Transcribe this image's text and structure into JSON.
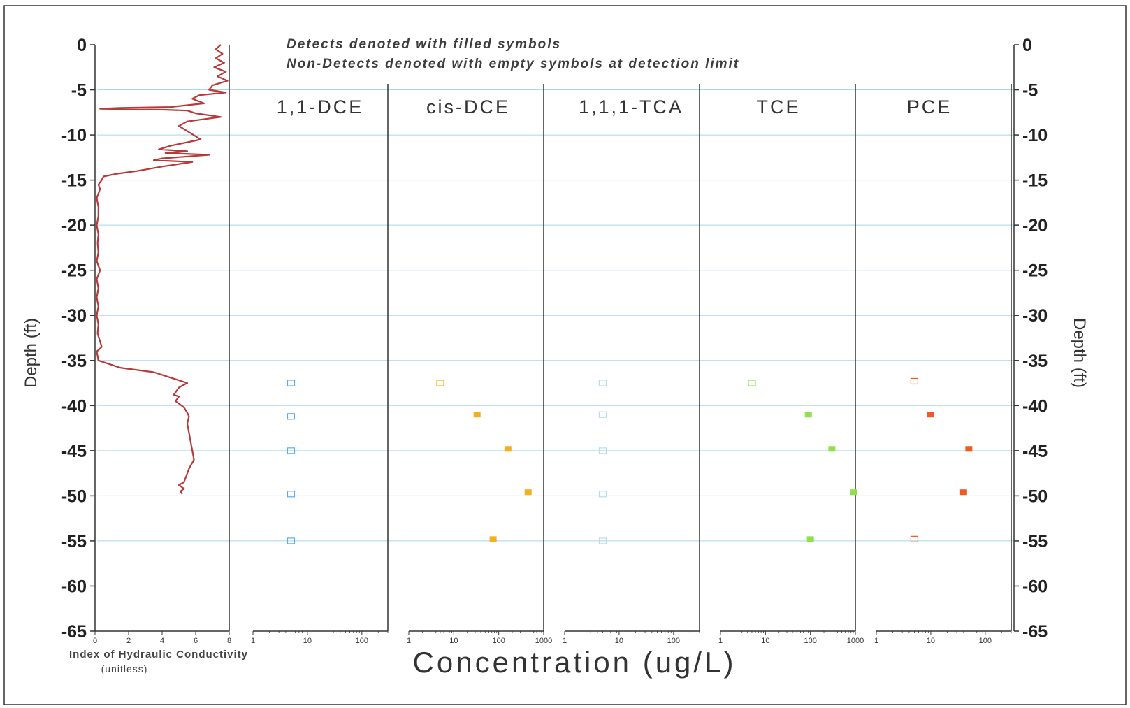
{
  "notes": {
    "line1": "Detects denoted with filled symbols",
    "line2": "Non-Detects denoted with empty symbols at detection limit"
  },
  "x_label": "Concentration (ug/L)",
  "colors": {
    "grid": "#a8d8ea",
    "axis": "#333333",
    "hc_line": "#b8393a",
    "dce11": "#5aaee8",
    "cisdce": "#f2b01e",
    "tca": "#b8dde8",
    "tce": "#8fe04a",
    "pce": "#ee5a24"
  },
  "chart_data": {
    "type": "scatter",
    "y_label_left": "Depth (ft)",
    "y_label_right": "Depth (ft)",
    "ylim": [
      -65,
      0
    ],
    "yticks": [
      0,
      -5,
      -10,
      -15,
      -20,
      -25,
      -30,
      -35,
      -40,
      -45,
      -50,
      -55,
      -60,
      -65
    ],
    "ytick_labels": [
      "0",
      "-5",
      "-10",
      "-15",
      "-20",
      "-25",
      "-30",
      "-35",
      "-40",
      "-45",
      "-50",
      "-55",
      "-60",
      "-65"
    ],
    "grid": true,
    "hydraulic_conductivity": {
      "type": "line",
      "xlabel": "Index of Hydraulic Conductivity",
      "xunit": "(unitless)",
      "xlim": [
        0,
        8
      ],
      "xticks": [
        0,
        2,
        4,
        6,
        8
      ],
      "xtick_labels": [
        "0",
        "2",
        "4",
        "6",
        "8"
      ],
      "x": [
        7.5,
        7.2,
        7.6,
        7.2,
        7.7,
        7.1,
        7.8,
        7.3,
        7.9,
        7.0,
        6.8,
        7.8,
        6.2,
        5.8,
        6.5,
        4.5,
        1.5,
        0.3,
        4.0,
        5.5,
        6.0,
        7.5,
        5.5,
        5.0,
        6.3,
        4.5,
        3.8,
        5.5,
        4.2,
        6.8,
        4.0,
        3.5,
        5.8,
        4.0,
        2.5,
        1.3,
        0.5,
        0.4,
        0.2,
        0.3,
        0.1,
        0.2,
        0.2,
        0.1,
        0.2,
        0.15,
        0.2,
        0.1,
        0.3,
        0.1,
        0.2,
        0.1,
        0.2,
        0.1,
        0.2,
        0.15,
        0.4,
        0.1,
        0.2,
        1.5,
        3.5,
        5.5,
        5.0,
        4.7,
        5.0,
        4.8,
        5.3,
        5.5,
        5.6,
        5.5,
        5.6,
        5.7,
        5.8,
        5.9,
        5.6,
        5.4,
        5.3,
        5.0,
        5.3,
        5.1,
        5.2
      ],
      "y": [
        0,
        -0.5,
        -1,
        -1.5,
        -2,
        -2.5,
        -3,
        -3.5,
        -4,
        -4.5,
        -5,
        -5.3,
        -5.6,
        -6,
        -6.5,
        -6.9,
        -7.0,
        -7.1,
        -7.2,
        -7.3,
        -7.6,
        -8.0,
        -8.5,
        -9.0,
        -10.5,
        -11.2,
        -11.6,
        -11.8,
        -12.0,
        -12.2,
        -12.6,
        -12.8,
        -13.0,
        -13.5,
        -14.0,
        -14.3,
        -14.6,
        -15.0,
        -15.5,
        -16.0,
        -17,
        -18,
        -19,
        -20,
        -21,
        -22,
        -23,
        -24,
        -25,
        -26,
        -27,
        -28,
        -29,
        -30,
        -31,
        -32,
        -33.5,
        -34,
        -35,
        -35.8,
        -36.3,
        -37.5,
        -38.0,
        -38.8,
        -39.0,
        -39.5,
        -40.2,
        -40.8,
        -41.2,
        -42.0,
        -43.0,
        -44.0,
        -45.0,
        -46.0,
        -47.0,
        -48.0,
        -48.5,
        -48.8,
        -49.2,
        -49.5,
        -49.8
      ]
    },
    "concentration_panels": [
      {
        "title": "1,1-DCE",
        "xscale": "log",
        "xlim": [
          1,
          300
        ],
        "xticks": [
          1,
          10,
          100
        ],
        "xtick_labels": [
          "1",
          "10",
          "100"
        ],
        "color": "#5aaee8",
        "points": [
          {
            "x": 5,
            "y": -37.5,
            "detect": false
          },
          {
            "x": 5,
            "y": -41.2,
            "detect": false
          },
          {
            "x": 5,
            "y": -45.0,
            "detect": false
          },
          {
            "x": 5,
            "y": -49.8,
            "detect": false
          },
          {
            "x": 5,
            "y": -55.0,
            "detect": false
          }
        ]
      },
      {
        "title": "cis-DCE",
        "xscale": "log",
        "xlim": [
          1,
          1000
        ],
        "xticks": [
          1,
          10,
          100,
          1000
        ],
        "xtick_labels": [
          "1",
          "10",
          "100",
          "1000"
        ],
        "color": "#f2b01e",
        "points": [
          {
            "x": 5,
            "y": -37.5,
            "detect": false
          },
          {
            "x": 33,
            "y": -41.0,
            "detect": true
          },
          {
            "x": 160,
            "y": -44.8,
            "detect": true
          },
          {
            "x": 450,
            "y": -49.6,
            "detect": true
          },
          {
            "x": 75,
            "y": -54.8,
            "detect": true
          }
        ]
      },
      {
        "title": "1,1,1-TCA",
        "xscale": "log",
        "xlim": [
          1,
          300
        ],
        "xticks": [
          1,
          10,
          100
        ],
        "xtick_labels": [
          "1",
          "10",
          "100"
        ],
        "color": "#b8dde8",
        "points": [
          {
            "x": 5,
            "y": -37.5,
            "detect": false
          },
          {
            "x": 5,
            "y": -41.0,
            "detect": false
          },
          {
            "x": 5,
            "y": -45.0,
            "detect": false
          },
          {
            "x": 5,
            "y": -49.8,
            "detect": false
          },
          {
            "x": 5,
            "y": -55.0,
            "detect": false
          }
        ]
      },
      {
        "title": "TCE",
        "xscale": "log",
        "xlim": [
          1,
          1000
        ],
        "xticks": [
          1,
          10,
          100,
          1000
        ],
        "xtick_labels": [
          "1",
          "10",
          "100",
          "1000"
        ],
        "color": "#8fe04a",
        "points": [
          {
            "x": 5,
            "y": -37.5,
            "detect": false
          },
          {
            "x": 90,
            "y": -41.0,
            "detect": true
          },
          {
            "x": 300,
            "y": -44.8,
            "detect": true
          },
          {
            "x": 900,
            "y": -49.6,
            "detect": true
          },
          {
            "x": 100,
            "y": -54.8,
            "detect": true
          }
        ]
      },
      {
        "title": "PCE",
        "xscale": "log",
        "xlim": [
          1,
          300
        ],
        "xticks": [
          1,
          10,
          100
        ],
        "xtick_labels": [
          "1",
          "10",
          "100"
        ],
        "color": "#ee5a24",
        "points": [
          {
            "x": 5,
            "y": -37.3,
            "detect": false
          },
          {
            "x": 10,
            "y": -41.0,
            "detect": true
          },
          {
            "x": 50,
            "y": -44.8,
            "detect": true
          },
          {
            "x": 40,
            "y": -49.6,
            "detect": true
          },
          {
            "x": 5,
            "y": -54.8,
            "detect": false
          }
        ]
      }
    ]
  }
}
